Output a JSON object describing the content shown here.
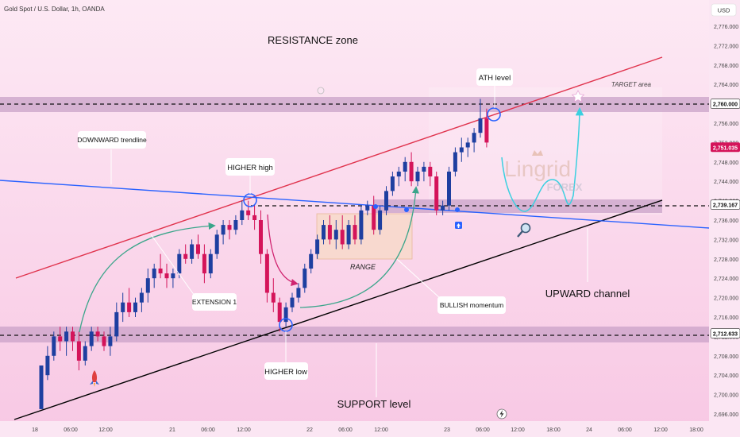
{
  "header": {
    "symbol_title": "Gold Spot / U.S. Dollar, 1h, OANDA",
    "currency": "USD"
  },
  "colors": {
    "background": "#fce4f2",
    "up_candle": "#1e3fa0",
    "down_candle": "#d4145a",
    "resistance_line": "#e0334d",
    "support_line": "#000000",
    "downtrend_line": "#2962ff",
    "zone_band": "#c9a2c8",
    "price_badge_current": "#d4145a",
    "curve_green": "#3aa58a",
    "curve_cyan": "#3ad0e0",
    "arrow_magenta": "#d02470"
  },
  "chart_data": {
    "type": "candlestick",
    "ylim": [
      2694,
      2780
    ],
    "y_ticks": [
      "2,776.000",
      "2,772.000",
      "2,768.000",
      "2,764.000",
      "2,760.000",
      "2,756.000",
      "2,752.000",
      "2,748.000",
      "2,744.000",
      "2,740.000",
      "2,736.000",
      "2,732.000",
      "2,728.000",
      "2,724.000",
      "2,720.000",
      "2,716.000",
      "2,712.000",
      "2,708.000",
      "2,704.000",
      "2,700.000",
      "2,696.000"
    ],
    "x_ticks": [
      "18",
      "06:00",
      "12:00",
      "21",
      "06:00",
      "12:00",
      "22",
      "06:00",
      "12:00",
      "23",
      "06:00",
      "12:00",
      "18:00",
      "24",
      "06:00",
      "12:00",
      "18:00"
    ],
    "price_badges": [
      {
        "label": "2,760.000",
        "value": 2760.0,
        "kind": "level"
      },
      {
        "label": "2,751.035",
        "value": 2751.035,
        "kind": "current"
      },
      {
        "label": "2,739.167",
        "value": 2739.167,
        "kind": "level"
      },
      {
        "label": "2,712.633",
        "value": 2712.633,
        "kind": "level"
      }
    ],
    "candles": [
      [
        2697,
        2706,
        2697,
        2706
      ],
      [
        2704,
        2710,
        2703,
        2708
      ],
      [
        2708,
        2713,
        2707,
        2712
      ],
      [
        2712,
        2714,
        2709,
        2711
      ],
      [
        2711,
        2714,
        2708,
        2713
      ],
      [
        2713,
        2714,
        2709,
        2711
      ],
      [
        2711,
        2713,
        2705,
        2707
      ],
      [
        2707,
        2711,
        2706,
        2710
      ],
      [
        2710,
        2714,
        2709,
        2713
      ],
      [
        2713,
        2714,
        2711,
        2712
      ],
      [
        2712,
        2713,
        2709,
        2710
      ],
      [
        2710,
        2714,
        2708,
        2712
      ],
      [
        2712,
        2719,
        2711,
        2717
      ],
      [
        2717,
        2721,
        2715,
        2719
      ],
      [
        2719,
        2722,
        2716,
        2717
      ],
      [
        2717,
        2720,
        2716,
        2719
      ],
      [
        2719,
        2722,
        2717,
        2721
      ],
      [
        2721,
        2726,
        2719,
        2724
      ],
      [
        2724,
        2727,
        2722,
        2726
      ],
      [
        2726,
        2729,
        2724,
        2725
      ],
      [
        2725,
        2727,
        2722,
        2724
      ],
      [
        2724,
        2726,
        2722,
        2725
      ],
      [
        2725,
        2730,
        2724,
        2729
      ],
      [
        2729,
        2731,
        2727,
        2728
      ],
      [
        2728,
        2732,
        2727,
        2731
      ],
      [
        2731,
        2733,
        2728,
        2729
      ],
      [
        2729,
        2731,
        2723,
        2725
      ],
      [
        2725,
        2730,
        2724,
        2729
      ],
      [
        2729,
        2734,
        2728,
        2733
      ],
      [
        2733,
        2736,
        2731,
        2735
      ],
      [
        2735,
        2736,
        2732,
        2734
      ],
      [
        2734,
        2737,
        2733,
        2736
      ],
      [
        2736,
        2740,
        2735,
        2738
      ],
      [
        2738,
        2740,
        2736,
        2737
      ],
      [
        2737,
        2739,
        2734,
        2736
      ],
      [
        2736,
        2738,
        2727,
        2729
      ],
      [
        2729,
        2730,
        2719,
        2721
      ],
      [
        2721,
        2724,
        2717,
        2719
      ],
      [
        2719,
        2720,
        2713,
        2715
      ],
      [
        2715,
        2719,
        2714,
        2718
      ],
      [
        2718,
        2721,
        2717,
        2720
      ],
      [
        2720,
        2723,
        2719,
        2722
      ],
      [
        2722,
        2727,
        2721,
        2726
      ],
      [
        2726,
        2730,
        2725,
        2729
      ],
      [
        2729,
        2733,
        2728,
        2732
      ],
      [
        2732,
        2736,
        2731,
        2735
      ],
      [
        2735,
        2737,
        2731,
        2732
      ],
      [
        2732,
        2736,
        2730,
        2734
      ],
      [
        2734,
        2737,
        2730,
        2731
      ],
      [
        2731,
        2736,
        2730,
        2735
      ],
      [
        2735,
        2737,
        2731,
        2732
      ],
      [
        2732,
        2739,
        2731,
        2738
      ],
      [
        2738,
        2740,
        2737,
        2739
      ],
      [
        2739,
        2741,
        2733,
        2734
      ],
      [
        2734,
        2739,
        2733,
        2738
      ],
      [
        2738,
        2743,
        2737,
        2742
      ],
      [
        2742,
        2746,
        2741,
        2745
      ],
      [
        2745,
        2747,
        2743,
        2746
      ],
      [
        2746,
        2749,
        2744,
        2748
      ],
      [
        2748,
        2750,
        2743,
        2744
      ],
      [
        2744,
        2747,
        2743,
        2746
      ],
      [
        2746,
        2748,
        2744,
        2747
      ],
      [
        2747,
        2748,
        2743,
        2745
      ],
      [
        2745,
        2746,
        2737,
        2738
      ],
      [
        2738,
        2740,
        2737,
        2739
      ],
      [
        2739,
        2747,
        2738,
        2746
      ],
      [
        2746,
        2751,
        2745,
        2750
      ],
      [
        2750,
        2753,
        2748,
        2751
      ],
      [
        2751,
        2753,
        2749,
        2752
      ],
      [
        2752,
        2755,
        2750,
        2754
      ],
      [
        2754,
        2761,
        2753,
        2757
      ],
      [
        2757,
        2759,
        2751,
        2752
      ]
    ]
  },
  "annotations": {
    "resistance_zone": "RESISTANCE zone",
    "ath_level": "ATH level",
    "target_area": "TARGET area",
    "downward_trendline": "DOWNWARD trendline",
    "higher_high": "HIGHER high",
    "range": "RANGE",
    "extension_1": "EXTENSION 1",
    "bullish_momentum": "BULLISH momentum",
    "upward_channel": "UPWARD channel",
    "higher_low": "HIGHER low",
    "support_level": "SUPPORT level",
    "watermark_main": "Lingrid",
    "watermark_sub": "FOREX"
  }
}
